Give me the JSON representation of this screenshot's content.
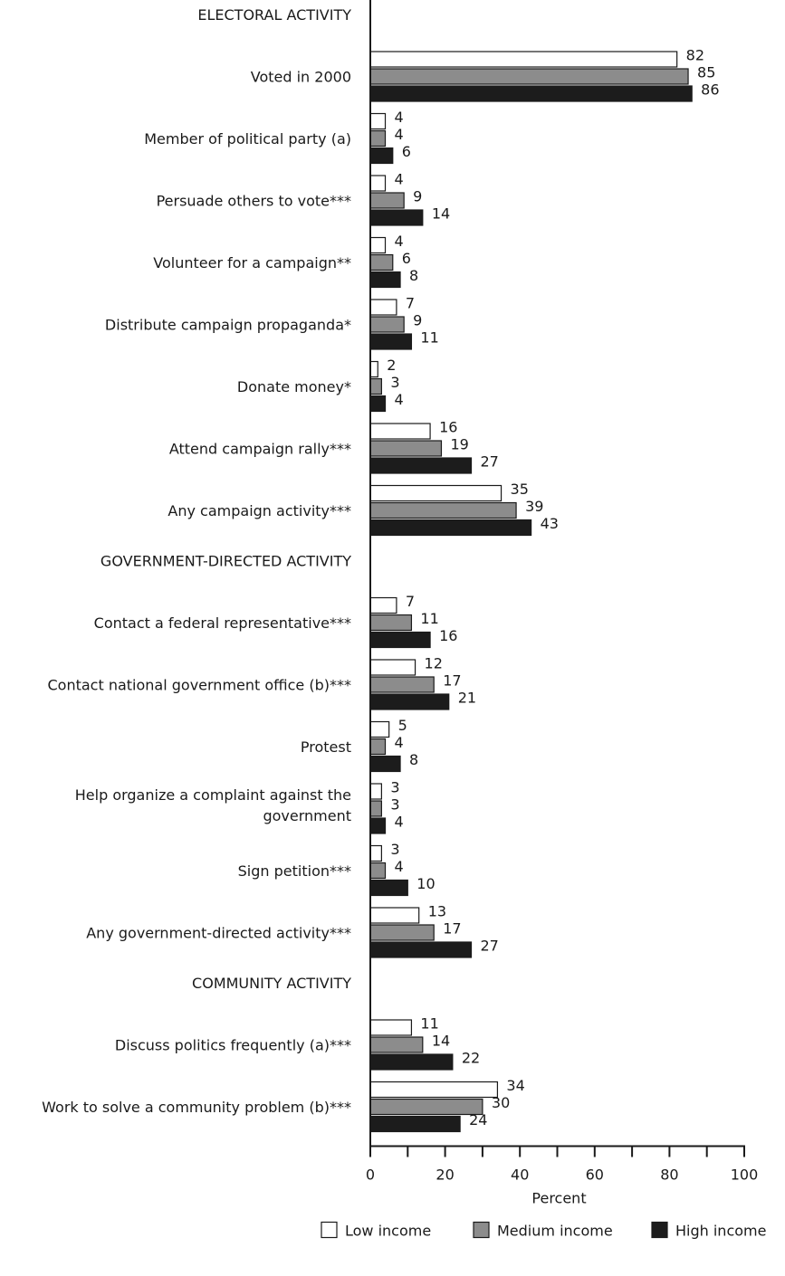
{
  "chart_data": {
    "type": "bar",
    "orientation": "horizontal",
    "xlabel": "Percent",
    "xlim": [
      0,
      100
    ],
    "xticks": [
      0,
      20,
      40,
      60,
      80,
      100
    ],
    "grid": false,
    "legend_position": "bottom",
    "series": [
      {
        "name": "Low income",
        "color": "#ffffff"
      },
      {
        "name": "Medium income",
        "color": "#8c8c8c"
      },
      {
        "name": "High income",
        "color": "#1c1c1c"
      }
    ],
    "sections": [
      {
        "heading": "ELECTORAL ACTIVITY",
        "items": [
          {
            "label": [
              "Voted in 2000"
            ],
            "values": [
              82,
              85,
              86
            ]
          },
          {
            "label": [
              "Member of political party (a)"
            ],
            "values": [
              4,
              4,
              6
            ]
          },
          {
            "label": [
              "Persuade others to vote***"
            ],
            "values": [
              4,
              9,
              14
            ]
          },
          {
            "label": [
              "Volunteer for a campaign**"
            ],
            "values": [
              4,
              6,
              8
            ]
          },
          {
            "label": [
              "Distribute campaign propaganda*"
            ],
            "values": [
              7,
              9,
              11
            ]
          },
          {
            "label": [
              "Donate money*"
            ],
            "values": [
              2,
              3,
              4
            ]
          },
          {
            "label": [
              "Attend campaign rally***"
            ],
            "values": [
              16,
              19,
              27
            ]
          },
          {
            "label": [
              "Any campaign activity***"
            ],
            "values": [
              35,
              39,
              43
            ]
          }
        ]
      },
      {
        "heading": "GOVERNMENT-DIRECTED ACTIVITY",
        "items": [
          {
            "label": [
              "Contact a federal representative***"
            ],
            "values": [
              7,
              11,
              16
            ]
          },
          {
            "label": [
              "Contact national government office (b)***"
            ],
            "values": [
              12,
              17,
              21
            ]
          },
          {
            "label": [
              "Protest"
            ],
            "values": [
              5,
              4,
              8
            ]
          },
          {
            "label": [
              "Help organize a complaint against the",
              "government"
            ],
            "values": [
              3,
              3,
              4
            ]
          },
          {
            "label": [
              "Sign petition***"
            ],
            "values": [
              3,
              4,
              10
            ]
          },
          {
            "label": [
              "Any government-directed activity***"
            ],
            "values": [
              13,
              17,
              27
            ]
          }
        ]
      },
      {
        "heading": "COMMUNITY ACTIVITY",
        "items": [
          {
            "label": [
              "Discuss politics frequently (a)***"
            ],
            "values": [
              11,
              14,
              22
            ]
          },
          {
            "label": [
              "Work to solve a community problem (b)***"
            ],
            "values": [
              34,
              30,
              24
            ]
          }
        ]
      }
    ]
  }
}
